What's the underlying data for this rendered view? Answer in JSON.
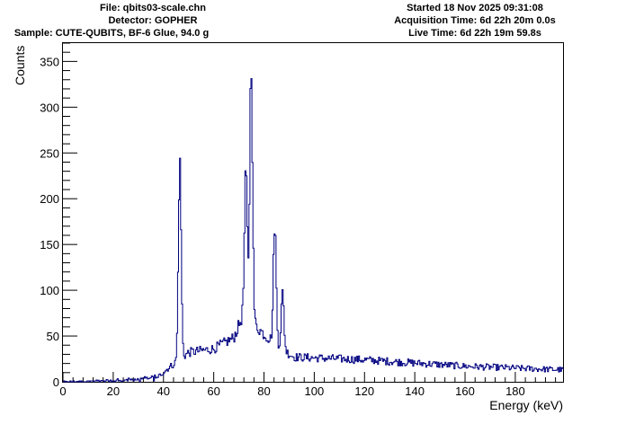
{
  "header": {
    "file": "File: qbits03-scale.chn",
    "detector": "Detector: GOPHER",
    "sample": "Sample: CUTE-QUBITS, BF-6 Glue, 94.0 g",
    "started": "Started 18 Nov 2025 09:31:08",
    "acquisition_time": "Acquisition Time: 6d 22h 20m 0.0s",
    "live_time": "Live Time: 6d 22h 19m 59.8s"
  },
  "chart_data": {
    "type": "histogram",
    "title": "",
    "xlabel": "Energy (keV)",
    "ylabel": "Counts",
    "xlim": [
      0,
      199
    ],
    "ylim": [
      0,
      370
    ],
    "x_ticks": [
      0,
      20,
      40,
      60,
      80,
      100,
      120,
      140,
      160,
      180
    ],
    "y_ticks": [
      0,
      50,
      100,
      150,
      200,
      250,
      300,
      350
    ],
    "grid": false,
    "legend": "none",
    "line_color": "#000080",
    "peaks": [
      {
        "energy": 46.5,
        "counts": 239
      },
      {
        "energy": 72.8,
        "counts": 227
      },
      {
        "energy": 74.9,
        "counts": 351
      },
      {
        "energy": 84.3,
        "counts": 174
      },
      {
        "energy": 87.4,
        "counts": 95
      }
    ],
    "continuum": [
      {
        "energy": 0,
        "counts": 0
      },
      {
        "energy": 20,
        "counts": 2
      },
      {
        "energy": 38,
        "counts": 6
      },
      {
        "energy": 42,
        "counts": 15
      },
      {
        "energy": 50,
        "counts": 32
      },
      {
        "energy": 60,
        "counts": 36
      },
      {
        "energy": 68,
        "counts": 48
      },
      {
        "energy": 72,
        "counts": 75
      },
      {
        "energy": 80,
        "counts": 52
      },
      {
        "energy": 86,
        "counts": 38
      },
      {
        "energy": 92,
        "counts": 27
      },
      {
        "energy": 120,
        "counts": 24
      },
      {
        "energy": 160,
        "counts": 17
      },
      {
        "energy": 199,
        "counts": 13
      }
    ]
  }
}
